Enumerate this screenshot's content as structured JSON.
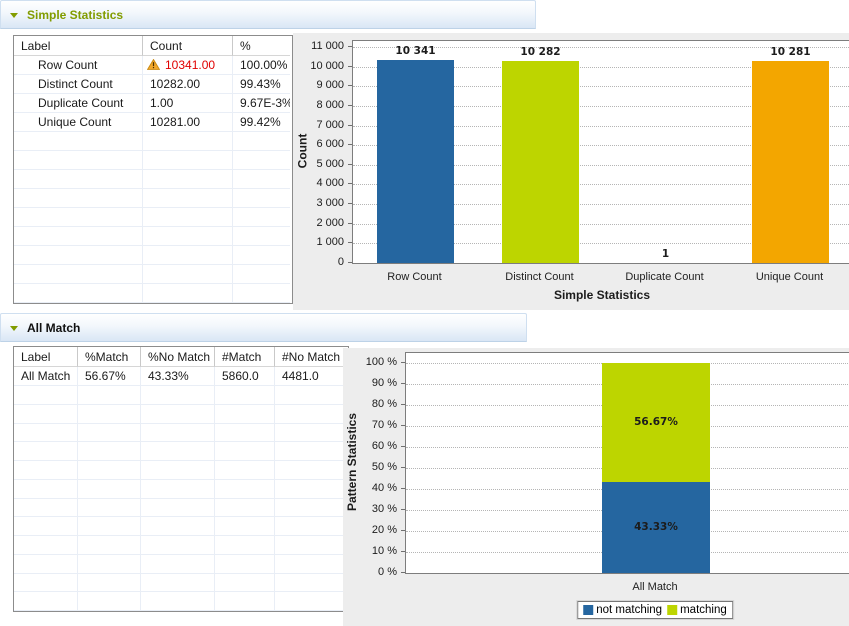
{
  "colors": {
    "bar_blue": "#2566a0",
    "bar_green": "#bdd500",
    "bar_orange": "#f3a600",
    "alert_red": "#e00000",
    "section_title_green": "#829c00"
  },
  "icons": {
    "section_toggle": "triangle-down-icon",
    "row_warning": "warning-triangle-icon"
  },
  "section_simple": {
    "title": "Simple Statistics",
    "table": {
      "columns": [
        "Label",
        "Count",
        "%"
      ],
      "rows": [
        {
          "label": "Row Count",
          "count": "10341.00",
          "pct": "100.00%",
          "warning": true,
          "highlight": "red"
        },
        {
          "label": "Distinct Count",
          "count": "10282.00",
          "pct": "99.43%",
          "warning": false,
          "highlight": ""
        },
        {
          "label": "Duplicate Count",
          "count": "1.00",
          "pct": "9.67E-3%",
          "warning": false,
          "highlight": ""
        },
        {
          "label": "Unique Count",
          "count": "10281.00",
          "pct": "99.42%",
          "warning": false,
          "highlight": ""
        }
      ]
    }
  },
  "section_all_match": {
    "title": "All Match",
    "table": {
      "columns": [
        "Label",
        "%Match",
        "%No Match",
        "#Match",
        "#No Match"
      ],
      "rows": [
        {
          "cells": [
            "All Match",
            "56.67%",
            "43.33%",
            "5860.0",
            "4481.0"
          ]
        }
      ]
    }
  },
  "chart_data": [
    {
      "type": "bar",
      "categories": [
        "Row Count",
        "Distinct Count",
        "Duplicate Count",
        "Unique Count"
      ],
      "values": [
        10341,
        10282,
        1,
        10281
      ],
      "value_labels": [
        "10 341",
        "10 282",
        "1",
        "10 281"
      ],
      "colors": [
        "#2566a0",
        "#bdd500",
        "#2566a0",
        "#f3a600"
      ],
      "xlabel": "Simple Statistics",
      "ylabel": "Count",
      "ylim": [
        0,
        11300
      ],
      "yticks": [
        0,
        1000,
        2000,
        3000,
        4000,
        5000,
        6000,
        7000,
        8000,
        9000,
        10000,
        11000
      ],
      "ytick_labels": [
        "0",
        "1 000",
        "2 000",
        "3 000",
        "4 000",
        "5 000",
        "6 000",
        "7 000",
        "8 000",
        "9 000",
        "10 000",
        "11 000"
      ],
      "grid": "horizontal-dotted",
      "legend_position": "none"
    },
    {
      "type": "stacked-bar",
      "categories": [
        "All Match"
      ],
      "series": [
        {
          "name": "not matching",
          "color": "#2566a0",
          "values": [
            43.33
          ],
          "value_labels": [
            "43.33%"
          ]
        },
        {
          "name": "matching",
          "color": "#bdd500",
          "values": [
            56.67
          ],
          "value_labels": [
            "56.67%"
          ]
        }
      ],
      "xlabel": "",
      "ylabel": "Pattern Statistics",
      "ylim": [
        0,
        104.8
      ],
      "yticks": [
        0,
        10,
        20,
        30,
        40,
        50,
        60,
        70,
        80,
        90,
        100
      ],
      "ytick_labels": [
        "0 %",
        "10 %",
        "20 %",
        "30 %",
        "40 %",
        "50 %",
        "60 %",
        "70 %",
        "80 %",
        "90 %",
        "100 %"
      ],
      "grid": "horizontal-dotted",
      "legend": [
        "not matching",
        "matching"
      ],
      "legend_position": "bottom"
    }
  ]
}
